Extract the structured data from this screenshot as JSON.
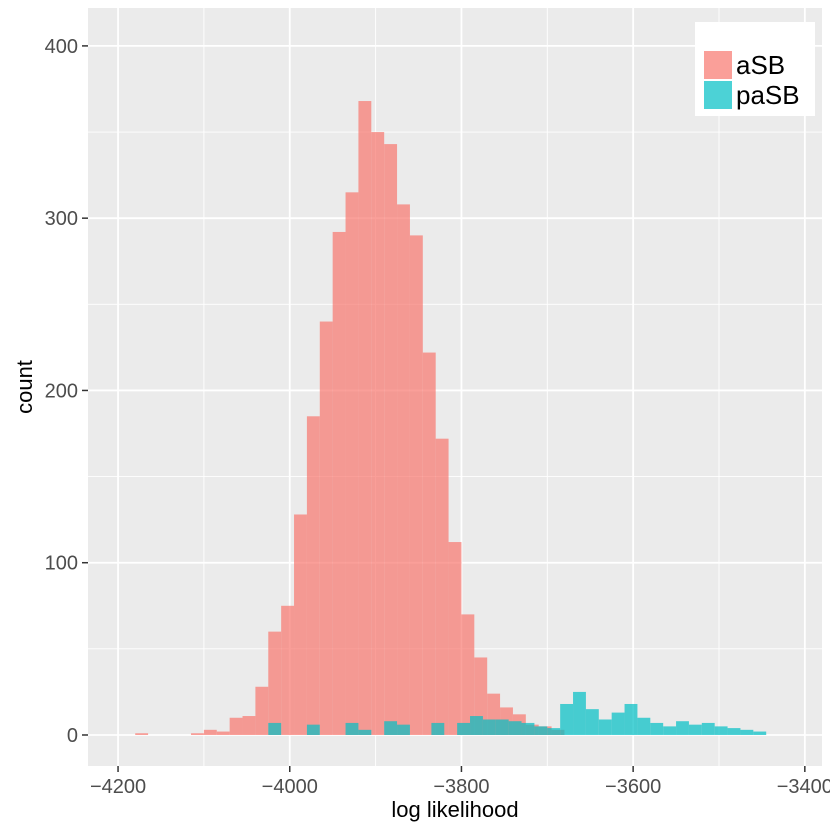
{
  "chart_data": {
    "type": "bar",
    "subtype": "overlapping-histogram",
    "xlabel": "log likelihood",
    "ylabel": "count",
    "xlim": [
      -4235,
      -3380
    ],
    "ylim": [
      -18,
      422
    ],
    "x_ticks": [
      -4200,
      -4000,
      -3800,
      -3600,
      -3400
    ],
    "x_tick_labels": [
      "−4200",
      "−4000",
      "−3800",
      "−3600",
      "−3400"
    ],
    "y_ticks": [
      0,
      100,
      200,
      300,
      400
    ],
    "y_tick_labels": [
      "0",
      "100",
      "200",
      "300",
      "400"
    ],
    "grid": true,
    "legend_position": "top-right",
    "bin_width": 15,
    "series": [
      {
        "name": "aSB",
        "color": "#F8766D",
        "opacity": 0.7,
        "bins": [
          [
            -4180,
            -4165,
            1
          ],
          [
            -4130,
            -4115,
            0
          ],
          [
            -4115,
            -4100,
            1
          ],
          [
            -4100,
            -4085,
            3
          ],
          [
            -4085,
            -4070,
            2
          ],
          [
            -4070,
            -4055,
            10
          ],
          [
            -4055,
            -4040,
            11
          ],
          [
            -4040,
            -4025,
            28
          ],
          [
            -4025,
            -4010,
            60
          ],
          [
            -4010,
            -3995,
            75
          ],
          [
            -3995,
            -3980,
            128
          ],
          [
            -3980,
            -3965,
            185
          ],
          [
            -3965,
            -3950,
            240
          ],
          [
            -3950,
            -3935,
            292
          ],
          [
            -3935,
            -3920,
            315
          ],
          [
            -3920,
            -3905,
            368
          ],
          [
            -3905,
            -3890,
            350
          ],
          [
            -3890,
            -3875,
            343
          ],
          [
            -3875,
            -3860,
            308
          ],
          [
            -3860,
            -3845,
            290
          ],
          [
            -3845,
            -3830,
            222
          ],
          [
            -3830,
            -3815,
            172
          ],
          [
            -3815,
            -3800,
            112
          ],
          [
            -3800,
            -3785,
            70
          ],
          [
            -3785,
            -3770,
            45
          ],
          [
            -3770,
            -3755,
            24
          ],
          [
            -3755,
            -3740,
            16
          ],
          [
            -3740,
            -3725,
            12
          ],
          [
            -3725,
            -3710,
            6
          ],
          [
            -3710,
            -3695,
            5
          ],
          [
            -3695,
            -3680,
            3
          ]
        ]
      },
      {
        "name": "paSB",
        "color": "#00BFC4",
        "opacity": 0.7,
        "bins": [
          [
            -4025,
            -4010,
            7
          ],
          [
            -3980,
            -3965,
            6
          ],
          [
            -3935,
            -3920,
            7
          ],
          [
            -3920,
            -3905,
            3
          ],
          [
            -3890,
            -3875,
            8
          ],
          [
            -3875,
            -3860,
            6
          ],
          [
            -3835,
            -3820,
            7
          ],
          [
            -3805,
            -3790,
            7
          ],
          [
            -3790,
            -3775,
            11
          ],
          [
            -3775,
            -3760,
            9
          ],
          [
            -3760,
            -3745,
            9
          ],
          [
            -3745,
            -3730,
            8
          ],
          [
            -3730,
            -3715,
            7
          ],
          [
            -3715,
            -3700,
            5
          ],
          [
            -3700,
            -3685,
            4
          ],
          [
            -3685,
            -3670,
            18
          ],
          [
            -3670,
            -3655,
            25
          ],
          [
            -3655,
            -3640,
            15
          ],
          [
            -3640,
            -3625,
            9
          ],
          [
            -3625,
            -3610,
            13
          ],
          [
            -3610,
            -3595,
            18
          ],
          [
            -3595,
            -3580,
            10
          ],
          [
            -3580,
            -3565,
            7
          ],
          [
            -3565,
            -3550,
            5
          ],
          [
            -3550,
            -3535,
            8
          ],
          [
            -3535,
            -3520,
            6
          ],
          [
            -3520,
            -3505,
            7
          ],
          [
            -3505,
            -3490,
            5
          ],
          [
            -3490,
            -3475,
            4
          ],
          [
            -3475,
            -3460,
            3
          ],
          [
            -3460,
            -3445,
            2
          ]
        ]
      }
    ]
  }
}
